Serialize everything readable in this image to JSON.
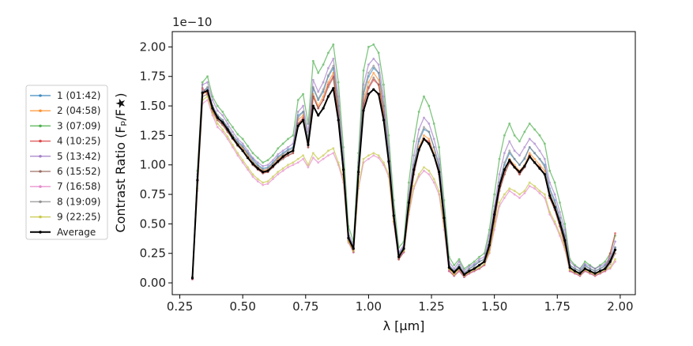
{
  "chart_data": {
    "type": "line",
    "title": "",
    "xlabel": "λ [μm]",
    "ylabel": "Contrast Ratio (Fₚ/F★)",
    "offset_text": "1e−10",
    "y_scale_factor": 1e-10,
    "xlim": [
      0.22,
      2.06
    ],
    "ylim": [
      -0.1,
      2.13
    ],
    "x_ticks": [
      0.25,
      0.5,
      0.75,
      1.0,
      1.25,
      1.5,
      1.75,
      2.0
    ],
    "x_tick_labels": [
      "0.25",
      "0.50",
      "0.75",
      "1.00",
      "1.25",
      "1.50",
      "1.75",
      "2.00"
    ],
    "y_ticks": [
      0.0,
      0.25,
      0.5,
      0.75,
      1.0,
      1.25,
      1.5,
      1.75,
      2.0
    ],
    "y_tick_labels": [
      "0.00",
      "0.25",
      "0.50",
      "0.75",
      "1.00",
      "1.25",
      "1.50",
      "1.75",
      "2.00"
    ],
    "grid": false,
    "legend_position": "outside-left",
    "x": [
      0.3,
      0.32,
      0.34,
      0.36,
      0.38,
      0.4,
      0.42,
      0.44,
      0.46,
      0.48,
      0.5,
      0.52,
      0.54,
      0.56,
      0.58,
      0.6,
      0.62,
      0.64,
      0.66,
      0.68,
      0.7,
      0.72,
      0.74,
      0.76,
      0.78,
      0.8,
      0.82,
      0.84,
      0.86,
      0.88,
      0.9,
      0.92,
      0.94,
      0.96,
      0.98,
      1.0,
      1.02,
      1.04,
      1.06,
      1.08,
      1.1,
      1.12,
      1.14,
      1.16,
      1.18,
      1.2,
      1.22,
      1.24,
      1.26,
      1.28,
      1.3,
      1.32,
      1.34,
      1.36,
      1.38,
      1.4,
      1.42,
      1.44,
      1.46,
      1.48,
      1.5,
      1.52,
      1.54,
      1.56,
      1.58,
      1.6,
      1.62,
      1.64,
      1.66,
      1.68,
      1.7,
      1.72,
      1.74,
      1.76,
      1.78,
      1.8,
      1.82,
      1.84,
      1.86,
      1.88,
      1.9,
      1.92,
      1.94,
      1.96,
      1.98
    ],
    "series": [
      {
        "name": "1 (01:42)",
        "color": "#1f77b4",
        "values": [
          0.05,
          0.9,
          1.62,
          1.65,
          1.5,
          1.42,
          1.38,
          1.32,
          1.25,
          1.2,
          1.16,
          1.1,
          1.05,
          1.0,
          0.97,
          0.98,
          1.02,
          1.07,
          1.1,
          1.13,
          1.15,
          1.42,
          1.45,
          1.22,
          1.65,
          1.55,
          1.62,
          1.75,
          1.82,
          1.5,
          1.0,
          0.4,
          0.3,
          0.98,
          1.6,
          1.75,
          1.82,
          1.78,
          1.5,
          1.1,
          0.6,
          0.25,
          0.3,
          0.7,
          1.0,
          1.2,
          1.3,
          1.28,
          1.15,
          1.0,
          0.6,
          0.15,
          0.1,
          0.15,
          0.08,
          0.12,
          0.15,
          0.18,
          0.2,
          0.35,
          0.6,
          0.85,
          1.0,
          1.1,
          1.05,
          1.0,
          1.05,
          1.15,
          1.1,
          1.05,
          1.0,
          0.8,
          0.7,
          0.55,
          0.4,
          0.15,
          0.12,
          0.1,
          0.15,
          0.12,
          0.1,
          0.12,
          0.15,
          0.2,
          0.3
        ]
      },
      {
        "name": "2 (04:58)",
        "color": "#ff7f0e",
        "values": [
          0.05,
          0.85,
          1.6,
          1.62,
          1.48,
          1.4,
          1.36,
          1.3,
          1.24,
          1.18,
          1.14,
          1.08,
          1.02,
          0.98,
          0.95,
          0.96,
          1.0,
          1.05,
          1.08,
          1.1,
          1.12,
          1.38,
          1.42,
          1.18,
          1.6,
          1.5,
          1.58,
          1.7,
          1.78,
          1.45,
          0.95,
          0.38,
          0.28,
          0.95,
          1.55,
          1.7,
          1.78,
          1.72,
          1.45,
          1.05,
          0.55,
          0.22,
          0.28,
          0.65,
          0.95,
          1.15,
          1.25,
          1.22,
          1.1,
          0.95,
          0.55,
          0.12,
          0.08,
          0.12,
          0.06,
          0.1,
          0.12,
          0.15,
          0.18,
          0.3,
          0.55,
          0.8,
          0.95,
          1.05,
          1.0,
          0.95,
          1.0,
          1.1,
          1.05,
          1.0,
          0.95,
          0.75,
          0.65,
          0.5,
          0.35,
          0.12,
          0.1,
          0.08,
          0.12,
          0.1,
          0.08,
          0.1,
          0.12,
          0.18,
          0.28
        ]
      },
      {
        "name": "3 (07:09)",
        "color": "#2ca02c",
        "values": [
          0.04,
          0.95,
          1.7,
          1.75,
          1.58,
          1.5,
          1.45,
          1.38,
          1.32,
          1.26,
          1.22,
          1.16,
          1.1,
          1.06,
          1.02,
          1.04,
          1.08,
          1.14,
          1.18,
          1.22,
          1.25,
          1.55,
          1.6,
          1.35,
          1.88,
          1.78,
          1.85,
          1.95,
          2.02,
          1.7,
          1.15,
          0.48,
          0.35,
          1.1,
          1.8,
          2.0,
          2.02,
          1.95,
          1.68,
          1.25,
          0.7,
          0.3,
          0.35,
          0.85,
          1.2,
          1.45,
          1.58,
          1.5,
          1.35,
          1.15,
          0.7,
          0.22,
          0.15,
          0.2,
          0.12,
          0.15,
          0.18,
          0.22,
          0.25,
          0.45,
          0.75,
          1.05,
          1.25,
          1.35,
          1.25,
          1.2,
          1.28,
          1.35,
          1.3,
          1.25,
          1.18,
          0.95,
          0.85,
          0.68,
          0.5,
          0.2,
          0.15,
          0.12,
          0.18,
          0.15,
          0.12,
          0.15,
          0.18,
          0.25,
          0.4
        ]
      },
      {
        "name": "4 (10:25)",
        "color": "#d62728",
        "values": [
          0.03,
          0.88,
          1.65,
          1.6,
          1.45,
          1.38,
          1.34,
          1.28,
          1.22,
          1.17,
          1.12,
          1.06,
          1.0,
          0.96,
          0.93,
          0.94,
          0.98,
          1.03,
          1.06,
          1.08,
          1.1,
          1.35,
          1.4,
          1.15,
          1.58,
          1.48,
          1.55,
          1.68,
          1.75,
          1.42,
          0.92,
          0.36,
          0.26,
          0.92,
          1.5,
          1.65,
          1.72,
          1.68,
          1.42,
          1.02,
          0.52,
          0.2,
          0.26,
          0.62,
          0.92,
          1.12,
          1.22,
          1.2,
          1.08,
          0.92,
          0.52,
          0.1,
          0.06,
          0.1,
          0.05,
          0.08,
          0.1,
          0.12,
          0.15,
          0.28,
          0.52,
          0.78,
          0.92,
          1.02,
          0.98,
          0.92,
          0.98,
          1.08,
          1.02,
          0.98,
          0.92,
          0.72,
          0.62,
          0.48,
          0.32,
          0.1,
          0.08,
          0.06,
          0.1,
          0.08,
          0.06,
          0.08,
          0.1,
          0.25,
          0.42
        ]
      },
      {
        "name": "5 (13:42)",
        "color": "#9467bd",
        "values": [
          0.05,
          0.92,
          1.68,
          1.7,
          1.55,
          1.46,
          1.42,
          1.35,
          1.28,
          1.22,
          1.18,
          1.12,
          1.06,
          1.02,
          0.99,
          1.0,
          1.04,
          1.09,
          1.12,
          1.15,
          1.18,
          1.45,
          1.5,
          1.28,
          1.72,
          1.62,
          1.7,
          1.82,
          1.9,
          1.58,
          1.05,
          0.42,
          0.32,
          1.02,
          1.68,
          1.85,
          1.9,
          1.85,
          1.58,
          1.15,
          0.62,
          0.26,
          0.32,
          0.75,
          1.08,
          1.3,
          1.4,
          1.35,
          1.22,
          1.05,
          0.62,
          0.18,
          0.12,
          0.18,
          0.1,
          0.14,
          0.16,
          0.2,
          0.22,
          0.4,
          0.65,
          0.92,
          1.1,
          1.2,
          1.12,
          1.08,
          1.15,
          1.22,
          1.18,
          1.12,
          1.05,
          0.85,
          0.75,
          0.6,
          0.45,
          0.18,
          0.14,
          0.12,
          0.16,
          0.14,
          0.12,
          0.14,
          0.16,
          0.22,
          0.35
        ]
      },
      {
        "name": "6 (15:52)",
        "color": "#8c564b",
        "values": [
          0.04,
          0.86,
          1.58,
          1.6,
          1.46,
          1.38,
          1.34,
          1.28,
          1.22,
          1.16,
          1.12,
          1.06,
          1.0,
          0.96,
          0.93,
          0.94,
          0.98,
          1.02,
          1.05,
          1.08,
          1.1,
          1.35,
          1.38,
          1.15,
          1.58,
          1.48,
          1.55,
          1.66,
          1.74,
          1.42,
          0.92,
          0.36,
          0.26,
          0.92,
          1.52,
          1.66,
          1.74,
          1.68,
          1.42,
          1.02,
          0.52,
          0.2,
          0.26,
          0.62,
          0.92,
          1.12,
          1.22,
          1.18,
          1.08,
          0.92,
          0.52,
          0.1,
          0.06,
          0.1,
          0.05,
          0.08,
          0.1,
          0.12,
          0.15,
          0.28,
          0.52,
          0.78,
          0.92,
          1.02,
          0.98,
          0.92,
          0.98,
          1.08,
          1.02,
          0.98,
          0.92,
          0.72,
          0.62,
          0.48,
          0.32,
          0.1,
          0.08,
          0.06,
          0.1,
          0.08,
          0.06,
          0.08,
          0.1,
          0.16,
          0.25
        ]
      },
      {
        "name": "7 (16:58)",
        "color": "#e377c2",
        "values": [
          0.03,
          0.78,
          1.52,
          1.55,
          1.42,
          1.32,
          1.28,
          1.22,
          1.15,
          1.08,
          1.02,
          0.96,
          0.9,
          0.86,
          0.83,
          0.84,
          0.88,
          0.92,
          0.95,
          0.98,
          1.0,
          1.02,
          1.05,
          0.98,
          1.06,
          1.02,
          1.05,
          1.08,
          1.1,
          1.0,
          0.85,
          0.34,
          0.26,
          0.8,
          1.02,
          1.05,
          1.08,
          1.06,
          1.0,
          0.9,
          0.5,
          0.22,
          0.26,
          0.58,
          0.8,
          0.9,
          0.95,
          0.92,
          0.85,
          0.75,
          0.45,
          0.1,
          0.06,
          0.1,
          0.05,
          0.08,
          0.1,
          0.12,
          0.15,
          0.25,
          0.45,
          0.65,
          0.72,
          0.78,
          0.75,
          0.72,
          0.76,
          0.82,
          0.8,
          0.76,
          0.72,
          0.58,
          0.5,
          0.4,
          0.28,
          0.1,
          0.08,
          0.06,
          0.1,
          0.08,
          0.06,
          0.08,
          0.1,
          0.12,
          0.18
        ]
      },
      {
        "name": "8 (19:09)",
        "color": "#7f7f7f",
        "values": [
          0.05,
          0.88,
          1.62,
          1.66,
          1.5,
          1.42,
          1.38,
          1.32,
          1.25,
          1.19,
          1.15,
          1.09,
          1.03,
          0.99,
          0.96,
          0.97,
          1.01,
          1.06,
          1.09,
          1.12,
          1.14,
          1.4,
          1.45,
          1.22,
          1.66,
          1.56,
          1.64,
          1.76,
          1.84,
          1.5,
          0.98,
          0.4,
          0.3,
          0.98,
          1.62,
          1.78,
          1.84,
          1.78,
          1.5,
          1.08,
          0.58,
          0.24,
          0.3,
          0.7,
          1.0,
          1.22,
          1.32,
          1.28,
          1.15,
          0.98,
          0.58,
          0.15,
          0.1,
          0.15,
          0.08,
          0.12,
          0.14,
          0.18,
          0.2,
          0.35,
          0.6,
          0.85,
          1.02,
          1.12,
          1.05,
          1.0,
          1.06,
          1.15,
          1.1,
          1.05,
          0.98,
          0.78,
          0.68,
          0.55,
          0.4,
          0.15,
          0.12,
          0.1,
          0.14,
          0.12,
          0.1,
          0.12,
          0.14,
          0.2,
          0.3
        ]
      },
      {
        "name": "9 (22:25)",
        "color": "#bcbd22",
        "values": [
          0.04,
          0.8,
          1.55,
          1.58,
          1.44,
          1.35,
          1.3,
          1.24,
          1.17,
          1.1,
          1.04,
          0.98,
          0.92,
          0.88,
          0.85,
          0.86,
          0.9,
          0.94,
          0.97,
          1.0,
          1.02,
          1.05,
          1.08,
          1.0,
          1.1,
          1.05,
          1.08,
          1.12,
          1.14,
          1.02,
          0.88,
          0.35,
          0.27,
          0.82,
          1.05,
          1.08,
          1.1,
          1.08,
          1.02,
          0.92,
          0.52,
          0.23,
          0.27,
          0.6,
          0.82,
          0.92,
          0.98,
          0.95,
          0.88,
          0.78,
          0.48,
          0.12,
          0.07,
          0.12,
          0.06,
          0.09,
          0.11,
          0.13,
          0.16,
          0.26,
          0.48,
          0.68,
          0.75,
          0.8,
          0.78,
          0.75,
          0.78,
          0.85,
          0.82,
          0.78,
          0.75,
          0.6,
          0.52,
          0.42,
          0.3,
          0.11,
          0.09,
          0.07,
          0.11,
          0.09,
          0.07,
          0.09,
          0.11,
          0.13,
          0.2
        ]
      },
      {
        "name": "Average",
        "color": "#000000",
        "values": [
          0.04,
          0.87,
          1.61,
          1.63,
          1.48,
          1.4,
          1.36,
          1.3,
          1.23,
          1.17,
          1.12,
          1.06,
          1.01,
          0.97,
          0.94,
          0.95,
          0.99,
          1.03,
          1.07,
          1.1,
          1.12,
          1.33,
          1.38,
          1.17,
          1.5,
          1.42,
          1.48,
          1.58,
          1.65,
          1.38,
          0.96,
          0.38,
          0.29,
          0.94,
          1.46,
          1.6,
          1.64,
          1.6,
          1.38,
          1.03,
          0.57,
          0.22,
          0.29,
          0.68,
          0.96,
          1.13,
          1.22,
          1.18,
          1.08,
          0.94,
          0.55,
          0.13,
          0.09,
          0.13,
          0.07,
          0.1,
          0.12,
          0.15,
          0.18,
          0.32,
          0.58,
          0.82,
          0.96,
          1.04,
          0.98,
          0.94,
          0.99,
          1.07,
          1.02,
          0.97,
          0.92,
          0.74,
          0.64,
          0.51,
          0.36,
          0.13,
          0.1,
          0.08,
          0.12,
          0.1,
          0.08,
          0.1,
          0.12,
          0.18,
          0.28
        ]
      }
    ]
  }
}
